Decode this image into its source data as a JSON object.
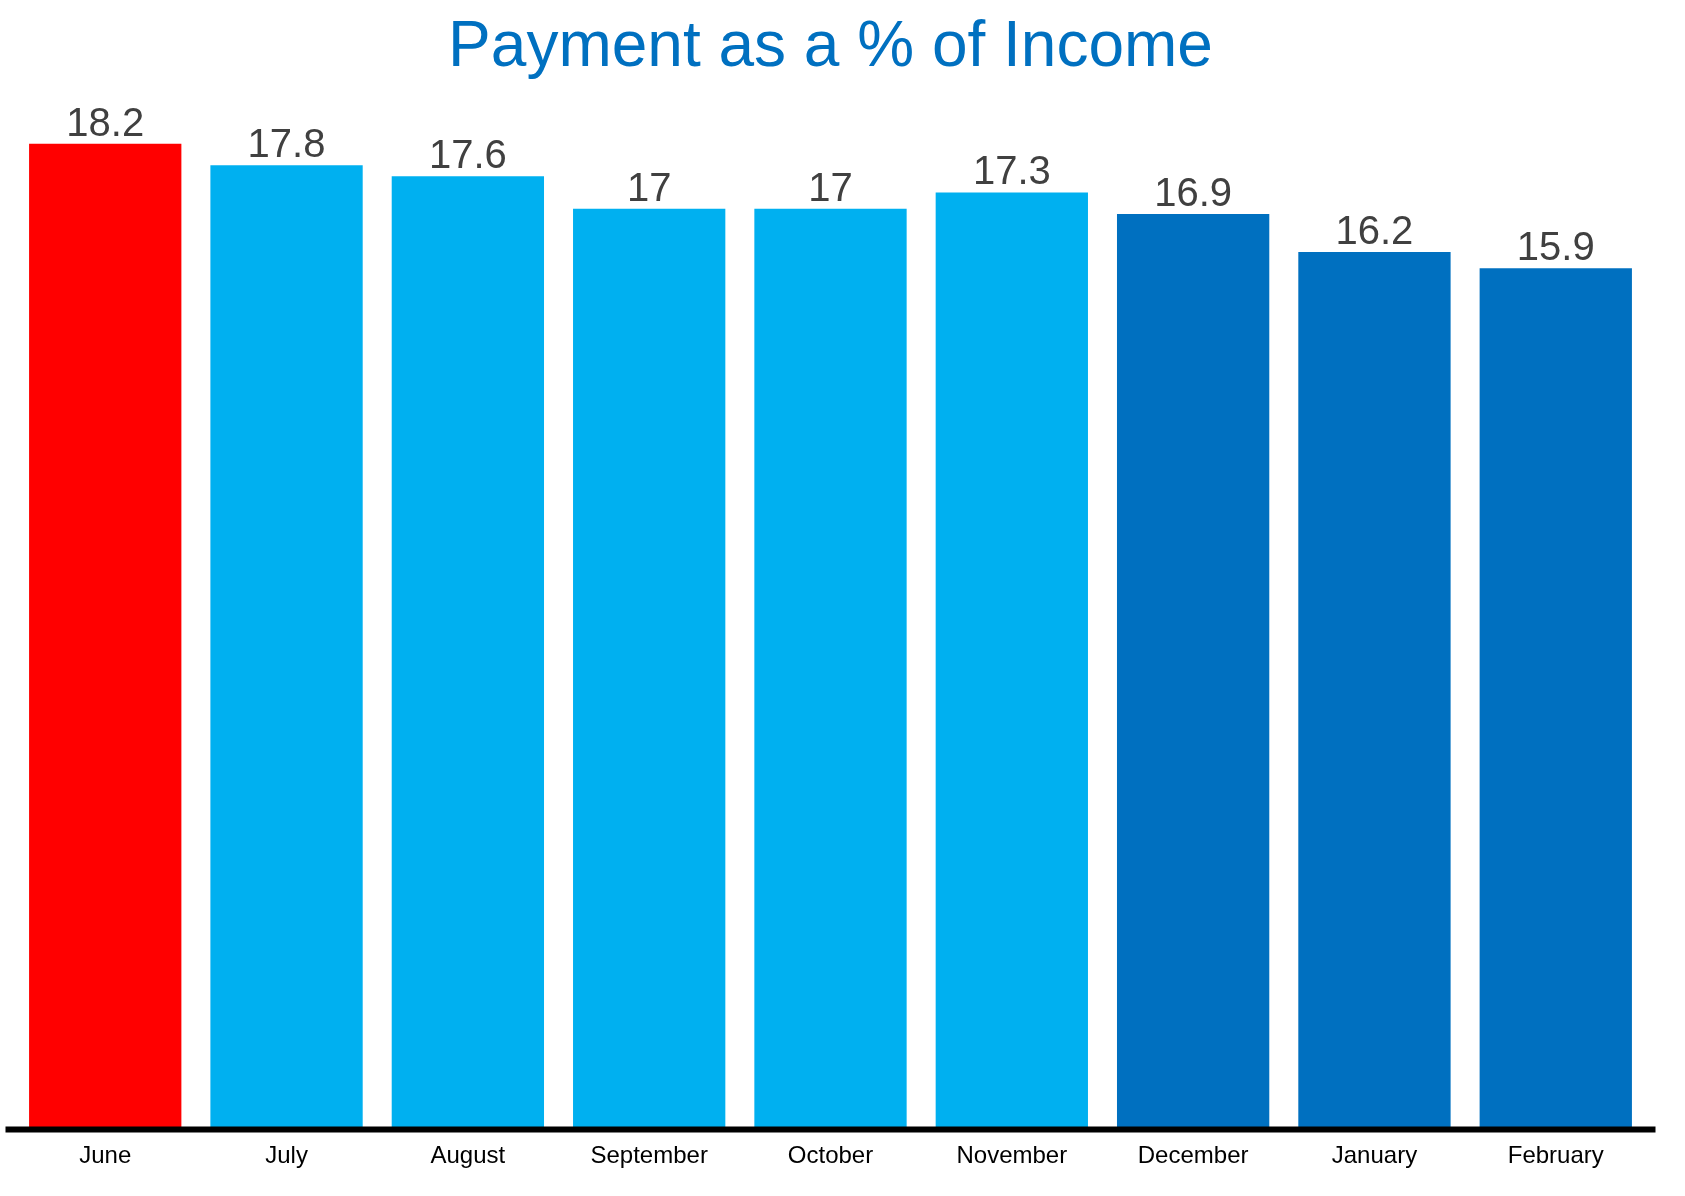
{
  "chart_data": {
    "type": "bar",
    "title": "Payment as a % of Income",
    "categories": [
      "June",
      "July",
      "August",
      "September",
      "October",
      "November",
      "December",
      "January",
      "February"
    ],
    "values": [
      18.2,
      17.8,
      17.6,
      17,
      17,
      17.3,
      16.9,
      16.2,
      15.9
    ],
    "colors": [
      "#ff0000",
      "#00b0f0",
      "#00b0f0",
      "#00b0f0",
      "#00b0f0",
      "#00b0f0",
      "#0070c0",
      "#0070c0",
      "#0070c0"
    ],
    "data_labels": true,
    "grid": false,
    "tick_labels": "x"
  }
}
